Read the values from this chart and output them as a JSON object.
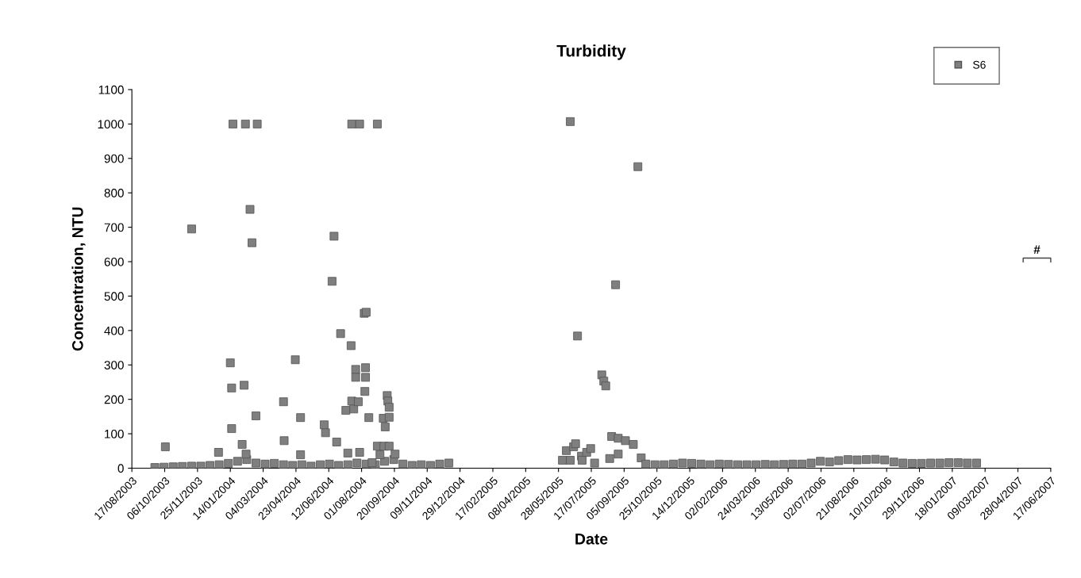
{
  "chart_data": {
    "type": "scatter",
    "title": "Turbidity",
    "xlabel": "Date",
    "ylabel": "Concentration, NTU",
    "ylim": [
      0,
      1100
    ],
    "yticks": [
      0,
      100,
      200,
      300,
      400,
      500,
      600,
      700,
      800,
      900,
      1000,
      1100
    ],
    "xlim": [
      "2003-08-17",
      "2007-06-17"
    ],
    "xticks": [
      {
        "value": "2003-08-17",
        "label": "17/08/2003"
      },
      {
        "value": "2003-10-06",
        "label": "06/10/2003"
      },
      {
        "value": "2003-11-25",
        "label": "25/11/2003"
      },
      {
        "value": "2004-01-14",
        "label": "14/01/2004"
      },
      {
        "value": "2004-03-04",
        "label": "04/03/2004"
      },
      {
        "value": "2004-04-23",
        "label": "23/04/2004"
      },
      {
        "value": "2004-06-12",
        "label": "12/06/2004"
      },
      {
        "value": "2004-08-01",
        "label": "01/08/2004"
      },
      {
        "value": "2004-09-20",
        "label": "20/09/2004"
      },
      {
        "value": "2004-11-09",
        "label": "09/11/2004"
      },
      {
        "value": "2004-12-29",
        "label": "29/12/2004"
      },
      {
        "value": "2005-02-17",
        "label": "17/02/2005"
      },
      {
        "value": "2005-04-08",
        "label": "08/04/2005"
      },
      {
        "value": "2005-05-28",
        "label": "28/05/2005"
      },
      {
        "value": "2005-07-17",
        "label": "17/07/2005"
      },
      {
        "value": "2005-09-05",
        "label": "05/09/2005"
      },
      {
        "value": "2005-10-25",
        "label": "25/10/2005"
      },
      {
        "value": "2005-12-14",
        "label": "14/12/2005"
      },
      {
        "value": "2006-02-02",
        "label": "02/02/2006"
      },
      {
        "value": "2006-03-24",
        "label": "24/03/2006"
      },
      {
        "value": "2006-05-13",
        "label": "13/05/2006"
      },
      {
        "value": "2006-07-02",
        "label": "02/07/2006"
      },
      {
        "value": "2006-08-21",
        "label": "21/08/2006"
      },
      {
        "value": "2006-10-10",
        "label": "10/10/2006"
      },
      {
        "value": "2006-11-29",
        "label": "29/11/2006"
      },
      {
        "value": "2007-01-18",
        "label": "18/01/2007"
      },
      {
        "value": "2007-03-09",
        "label": "09/03/2007"
      },
      {
        "value": "2007-04-28",
        "label": "28/04/2007"
      },
      {
        "value": "2007-06-17",
        "label": "17/06/2007"
      }
    ],
    "marker": "square",
    "grid": false,
    "legend": "top right",
    "annotations": [
      "#"
    ],
    "series": [
      {
        "name": "S6",
        "color": "#7f7f7f",
        "x": [
          "2003-09-21",
          "2003-10-05",
          "2003-10-19",
          "2003-11-02",
          "2003-11-16",
          "2003-11-30",
          "2003-12-14",
          "2003-12-28",
          "2004-01-11",
          "2004-01-25",
          "2004-02-08",
          "2004-02-22",
          "2004-03-07",
          "2004-03-21",
          "2004-04-04",
          "2004-04-18",
          "2004-05-02",
          "2004-05-16",
          "2004-05-30",
          "2004-06-13",
          "2004-06-27",
          "2004-07-11",
          "2004-07-25",
          "2004-08-08",
          "2004-08-22",
          "2004-09-05",
          "2004-09-19",
          "2004-10-03",
          "2004-10-17",
          "2004-10-31",
          "2004-11-14",
          "2004-11-28",
          "2004-12-12",
          "2003-10-07",
          "2003-11-16",
          "2003-12-27",
          "2004-01-14",
          "2004-01-16",
          "2004-01-16",
          "2004-01-18",
          "2004-02-01",
          "2004-02-04",
          "2004-02-06",
          "2004-02-07",
          "2004-02-13",
          "2004-02-16",
          "2004-02-22",
          "2004-02-24",
          "2004-04-04",
          "2004-04-05",
          "2004-04-22",
          "2004-04-30",
          "2004-04-30",
          "2004-06-05",
          "2004-06-07",
          "2004-06-17",
          "2004-06-20",
          "2004-06-24",
          "2004-06-30",
          "2004-07-08",
          "2004-07-11",
          "2004-07-16",
          "2004-07-17",
          "2004-07-17",
          "2004-07-20",
          "2004-07-23",
          "2004-07-23",
          "2004-07-27",
          "2004-07-29",
          "2004-07-29",
          "2004-08-05",
          "2004-08-06",
          "2004-08-07",
          "2004-08-07",
          "2004-08-08",
          "2004-08-12",
          "2004-08-17",
          "2004-08-25",
          "2004-08-25",
          "2004-08-29",
          "2004-09-03",
          "2004-09-04",
          "2004-09-06",
          "2004-09-09",
          "2004-09-10",
          "2004-09-12",
          "2004-09-12",
          "2004-09-12",
          "2004-09-21",
          "2005-06-03",
          "2005-06-09",
          "2005-06-15",
          "2005-06-15",
          "2005-06-20",
          "2005-06-23",
          "2005-06-26",
          "2005-07-02",
          "2005-07-03",
          "2005-07-10",
          "2005-07-16",
          "2005-07-22",
          "2005-08-02",
          "2005-08-05",
          "2005-08-08",
          "2005-08-14",
          "2005-08-17",
          "2005-08-23",
          "2005-08-27",
          "2005-08-27",
          "2005-09-07",
          "2005-09-19",
          "2005-09-26",
          "2005-10-01",
          "2005-10-08",
          "2005-10-22",
          "2005-11-05",
          "2005-11-19",
          "2005-12-03",
          "2005-12-17",
          "2005-12-31",
          "2006-01-14",
          "2006-01-28",
          "2006-02-11",
          "2006-02-25",
          "2006-03-11",
          "2006-03-25",
          "2006-04-08",
          "2006-04-22",
          "2006-05-06",
          "2006-05-20",
          "2006-06-03",
          "2006-06-17",
          "2006-07-01",
          "2006-07-15",
          "2006-07-29",
          "2006-08-12",
          "2006-08-26",
          "2006-09-09",
          "2006-09-23",
          "2006-10-07",
          "2006-10-21",
          "2006-11-04",
          "2006-11-18",
          "2006-12-02",
          "2006-12-16",
          "2006-12-30",
          "2007-01-13",
          "2007-01-27",
          "2007-02-10",
          "2007-02-24"
        ],
        "values": [
          2,
          3,
          4,
          5,
          6,
          6,
          8,
          10,
          14,
          20,
          25,
          15,
          12,
          14,
          10,
          8,
          10,
          6,
          10,
          12,
          8,
          10,
          15,
          12,
          10,
          20,
          25,
          12,
          8,
          10,
          8,
          12,
          15,
          62,
          695,
          46,
          306,
          233,
          115,
          1000,
          69,
          241,
          1000,
          41,
          752,
          655,
          152,
          1000,
          193,
          80,
          315,
          147,
          39,
          126,
          103,
          543,
          674,
          76,
          391,
          168,
          44,
          356,
          195,
          1000,
          172,
          287,
          264,
          193,
          1000,
          46,
          450,
          223,
          292,
          264,
          453,
          147,
          16,
          1000,
          64,
          39,
          145,
          64,
          120,
          211,
          195,
          177,
          148,
          64,
          41,
          23,
          51,
          1007,
          23,
          62,
          71,
          384,
          35,
          23,
          46,
          57,
          15,
          271,
          253,
          239,
          28,
          92,
          533,
          87,
          41,
          80,
          69,
          876,
          30,
          12,
          10,
          10,
          12,
          15,
          14,
          12,
          10,
          12,
          11,
          10,
          10,
          10,
          11,
          10,
          11,
          12,
          12,
          15,
          20,
          18,
          22,
          25,
          24,
          25,
          26,
          24,
          18,
          15,
          14,
          14,
          15,
          15,
          16,
          16,
          15,
          15
        ]
      }
    ]
  }
}
